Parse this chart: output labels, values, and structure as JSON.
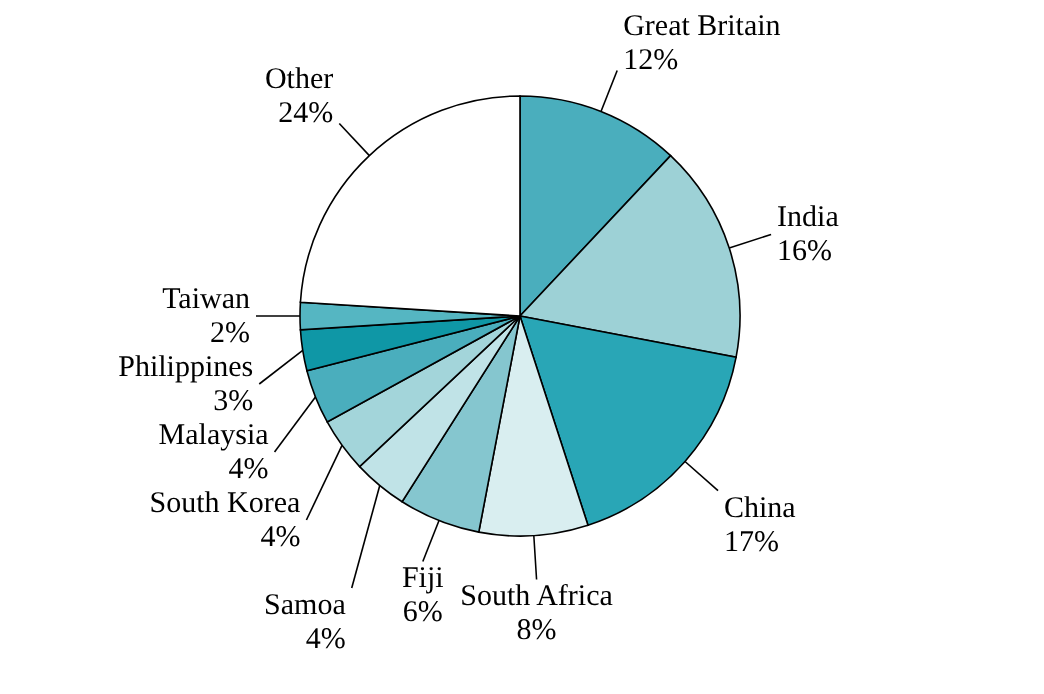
{
  "chart_data": {
    "type": "pie",
    "categories": [
      "Great Britain",
      "India",
      "China",
      "South Africa",
      "Fiji",
      "Samoa",
      "South Korea",
      "Malaysia",
      "Philippines",
      "Taiwan",
      "Other"
    ],
    "values": [
      12,
      16,
      17,
      8,
      6,
      4,
      4,
      4,
      3,
      2,
      24
    ],
    "value_labels": [
      "12%",
      "16%",
      "17%",
      "8%",
      "6%",
      "4%",
      "4%",
      "4%",
      "3%",
      "2%",
      "24%"
    ],
    "colors": [
      "#4aaebd",
      "#9dd1d6",
      "#29a6b6",
      "#d9eef0",
      "#85c6cf",
      "#c0e3e7",
      "#a3d5da",
      "#4aaebd",
      "#0f97a6",
      "#55b6c2",
      "#ffffff"
    ],
    "legend": false
  }
}
